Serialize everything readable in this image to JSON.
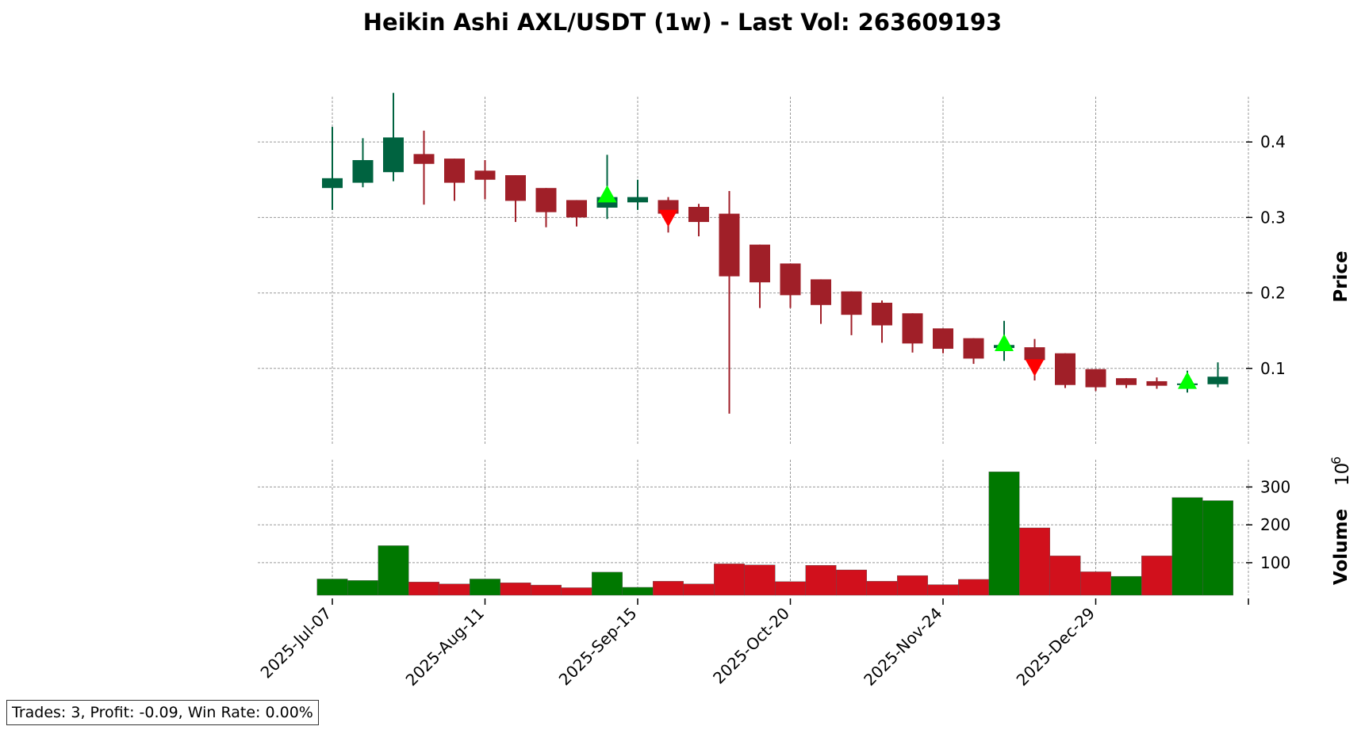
{
  "title": "Heikin Ashi AXL/USDT (1w) - Last Vol: 263609193",
  "stats": "Trades: 3, Profit: -0.09, Win Rate: 0.00%",
  "colors": {
    "up_candle": "#006340",
    "down_candle": "#a01f28",
    "up_volume": "#007800",
    "down_volume": "#d1101c",
    "buy_marker": "#00ff00",
    "sell_marker": "#ff0000",
    "grid": "#999999"
  },
  "chart_data": [
    {
      "type": "candlestick",
      "ylabel": "Price",
      "ylim": [
        0.0,
        0.46
      ],
      "yticks": [
        0.1,
        0.2,
        0.3,
        0.4
      ],
      "ytick_labels": [
        "0.1",
        "0.2",
        "0.3",
        "0.4"
      ],
      "grid": true,
      "x_start": "2025-07-07",
      "x_interval_days": 7,
      "xtick_labels": [
        "2025-Jul-07",
        "2025-Aug-11",
        "2025-Sep-15",
        "2025-Oct-20",
        "2025-Nov-24",
        "2025-Dec-29"
      ],
      "candles": [
        {
          "open": 0.339,
          "high": 0.42,
          "low": 0.31,
          "close": 0.352
        },
        {
          "open": 0.346,
          "high": 0.405,
          "low": 0.34,
          "close": 0.376
        },
        {
          "open": 0.36,
          "high": 0.465,
          "low": 0.348,
          "close": 0.406
        },
        {
          "open": 0.384,
          "high": 0.415,
          "low": 0.317,
          "close": 0.371
        },
        {
          "open": 0.378,
          "high": 0.378,
          "low": 0.322,
          "close": 0.346
        },
        {
          "open": 0.362,
          "high": 0.376,
          "low": 0.324,
          "close": 0.35
        },
        {
          "open": 0.356,
          "high": 0.356,
          "low": 0.294,
          "close": 0.322
        },
        {
          "open": 0.339,
          "high": 0.339,
          "low": 0.287,
          "close": 0.307
        },
        {
          "open": 0.323,
          "high": 0.323,
          "low": 0.288,
          "close": 0.3
        },
        {
          "open": 0.313,
          "high": 0.383,
          "low": 0.298,
          "close": 0.327
        },
        {
          "open": 0.32,
          "high": 0.35,
          "low": 0.31,
          "close": 0.327
        },
        {
          "open": 0.323,
          "high": 0.327,
          "low": 0.28,
          "close": 0.305
        },
        {
          "open": 0.314,
          "high": 0.318,
          "low": 0.275,
          "close": 0.294
        },
        {
          "open": 0.305,
          "high": 0.335,
          "low": 0.04,
          "close": 0.222
        },
        {
          "open": 0.264,
          "high": 0.264,
          "low": 0.18,
          "close": 0.214
        },
        {
          "open": 0.239,
          "high": 0.239,
          "low": 0.18,
          "close": 0.197
        },
        {
          "open": 0.218,
          "high": 0.218,
          "low": 0.159,
          "close": 0.184
        },
        {
          "open": 0.202,
          "high": 0.202,
          "low": 0.144,
          "close": 0.171
        },
        {
          "open": 0.187,
          "high": 0.19,
          "low": 0.134,
          "close": 0.157
        },
        {
          "open": 0.173,
          "high": 0.173,
          "low": 0.121,
          "close": 0.133
        },
        {
          "open": 0.153,
          "high": 0.153,
          "low": 0.12,
          "close": 0.126
        },
        {
          "open": 0.14,
          "high": 0.14,
          "low": 0.106,
          "close": 0.113
        },
        {
          "open": 0.127,
          "high": 0.163,
          "low": 0.11,
          "close": 0.131
        },
        {
          "open": 0.128,
          "high": 0.139,
          "low": 0.084,
          "close": 0.111
        },
        {
          "open": 0.12,
          "high": 0.12,
          "low": 0.074,
          "close": 0.078
        },
        {
          "open": 0.099,
          "high": 0.099,
          "low": 0.07,
          "close": 0.075
        },
        {
          "open": 0.087,
          "high": 0.087,
          "low": 0.074,
          "close": 0.078
        },
        {
          "open": 0.083,
          "high": 0.088,
          "low": 0.073,
          "close": 0.077
        },
        {
          "open": 0.078,
          "high": 0.097,
          "low": 0.068,
          "close": 0.08
        },
        {
          "open": 0.079,
          "high": 0.108,
          "low": 0.075,
          "close": 0.089
        }
      ],
      "markers": [
        {
          "index": 9,
          "side": "buy",
          "price": 0.33
        },
        {
          "index": 11,
          "side": "sell",
          "price": 0.3
        },
        {
          "index": 22,
          "side": "buy",
          "price": 0.133
        },
        {
          "index": 23,
          "side": "sell",
          "price": 0.102
        },
        {
          "index": 28,
          "side": "buy",
          "price": 0.083
        }
      ]
    },
    {
      "type": "bar",
      "ylabel": "Volume",
      "yscale_label": "10^6",
      "ylim": [
        14,
        372
      ],
      "yticks": [
        100,
        200,
        300
      ],
      "ytick_labels": [
        "100",
        "200",
        "300"
      ],
      "grid": true,
      "values": [
        57,
        53,
        145,
        49,
        44,
        57,
        47,
        41,
        34,
        75,
        35,
        51,
        44,
        97,
        94,
        50,
        93,
        81,
        51,
        66,
        42,
        56,
        340,
        192,
        118,
        76,
        64,
        118,
        272,
        264
      ],
      "directions": [
        "up",
        "up",
        "up",
        "down",
        "down",
        "up",
        "down",
        "down",
        "down",
        "up",
        "up",
        "down",
        "down",
        "down",
        "down",
        "down",
        "down",
        "down",
        "down",
        "down",
        "down",
        "down",
        "up",
        "down",
        "down",
        "down",
        "up",
        "down",
        "up",
        "up"
      ]
    }
  ]
}
